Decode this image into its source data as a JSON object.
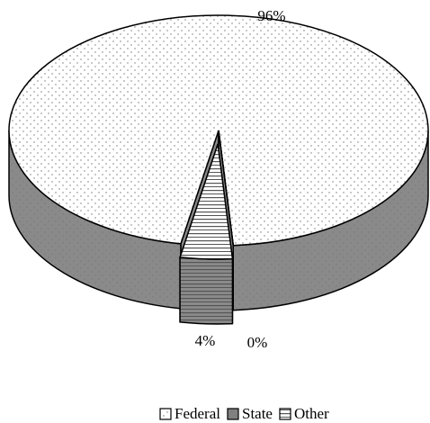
{
  "chart_data": {
    "type": "pie3d",
    "categories": [
      "Federal",
      "State",
      "Other"
    ],
    "values": [
      96,
      0,
      4
    ],
    "value_labels": [
      "96%",
      "0%",
      "4%"
    ],
    "colors": [
      "#ffffff",
      "#808080",
      "#ffffff"
    ],
    "patterns": [
      "dots",
      "dots",
      "hlines"
    ],
    "legend": "bottom"
  }
}
